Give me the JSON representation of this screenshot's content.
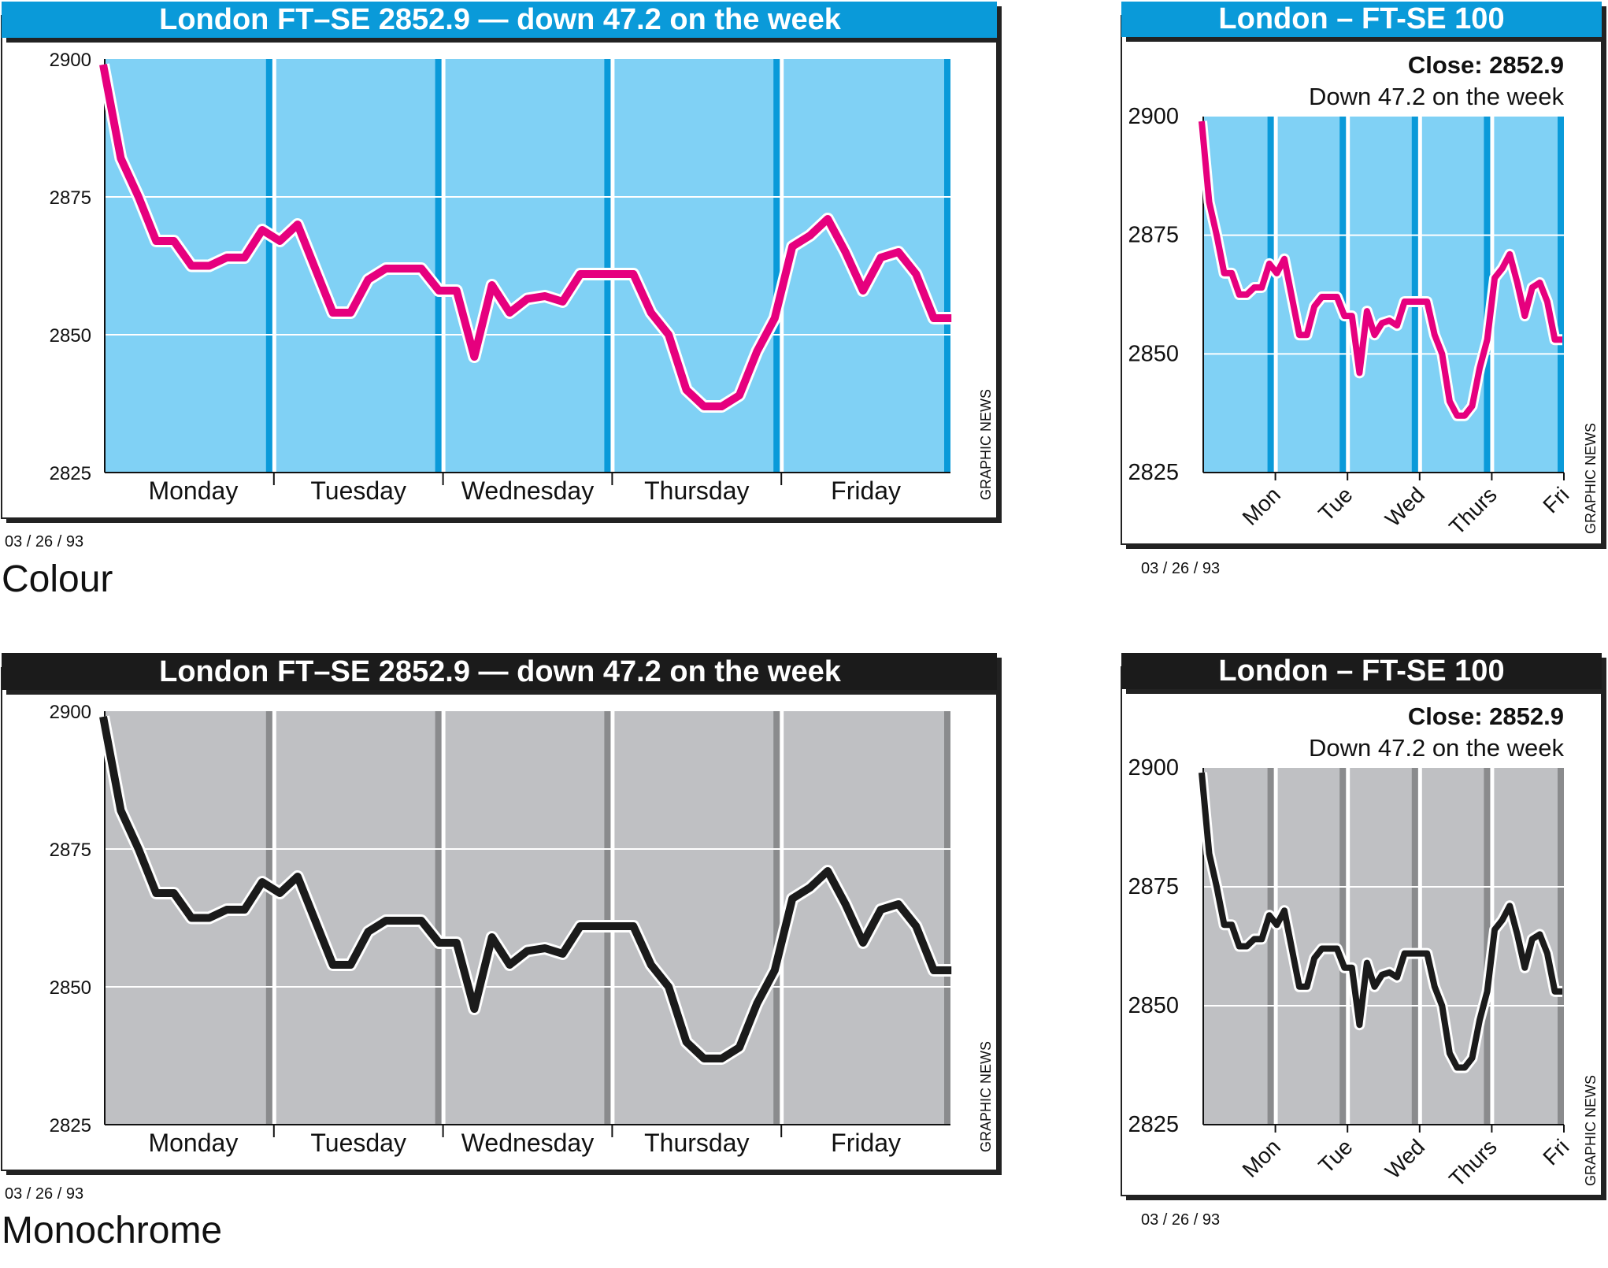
{
  "colors": {
    "colour_header_bg": "#0a9ad9",
    "colour_plot_bg": "#80d1f5",
    "colour_day_band": "#0a9ad9",
    "colour_line": "#e6007e",
    "mono_header_bg": "#1b1b1b",
    "mono_plot_bg": "#bfc0c3",
    "mono_day_band": "#8a8b8d",
    "mono_line": "#1b1b1b",
    "header_text": "#ffffff",
    "gridline": "#ffffff"
  },
  "labels": {
    "colour_section": "Colour",
    "monochrome_section": "Monochrome",
    "date_wide_colour": "03 / 26 / 93",
    "date_narrow_colour": "03 / 26 / 93",
    "date_wide_mono": "03 / 26 / 93",
    "date_narrow_mono": "03 / 26 / 93"
  },
  "chart_data": [
    {
      "id": "wide-colour",
      "type": "line",
      "variant": "colour",
      "title": "London FT–SE 2852.9 — down 47.2 on the week",
      "credit": "GRAPHIC NEWS",
      "xlabel": "",
      "ylabel": "",
      "ylim": [
        2825,
        2900
      ],
      "yticks": [
        "2900",
        "2875",
        "2850",
        "2825"
      ],
      "days": [
        "Monday",
        "Tuesday",
        "Wednesday",
        "Thursday",
        "Friday"
      ],
      "series": [
        {
          "name": "FT-SE",
          "values": [
            2899,
            2882,
            2875,
            2867,
            2867,
            2862.5,
            2862.5,
            2864,
            2864,
            2869,
            2867,
            2870,
            2862,
            2854,
            2854,
            2860,
            2862,
            2862,
            2862,
            2858,
            2858,
            2846,
            2859,
            2854,
            2856.5,
            2857,
            2856,
            2861,
            2861,
            2861,
            2861,
            2854,
            2850,
            2840,
            2837,
            2837,
            2839,
            2847,
            2853,
            2866,
            2868,
            2871,
            2865,
            2858,
            2864,
            2865,
            2861,
            2853,
            2853
          ]
        }
      ]
    },
    {
      "id": "narrow-colour",
      "type": "line",
      "variant": "colour",
      "title": "London – FT-SE 100",
      "close": "Close: 2852.9",
      "change": "Down 47.2 on the week",
      "credit": "GRAPHIC NEWS",
      "xlabel": "",
      "ylabel": "",
      "ylim": [
        2825,
        2900
      ],
      "yticks": [
        "2900",
        "2875",
        "2850",
        "2825"
      ],
      "days": [
        "Mon",
        "Tue",
        "Wed",
        "Thurs",
        "Fri"
      ],
      "series": [
        {
          "name": "FT-SE 100",
          "values": [
            2899,
            2882,
            2875,
            2867,
            2867,
            2862.5,
            2862.5,
            2864,
            2864,
            2869,
            2867,
            2870,
            2862,
            2854,
            2854,
            2860,
            2862,
            2862,
            2862,
            2858,
            2858,
            2846,
            2859,
            2854,
            2856.5,
            2857,
            2856,
            2861,
            2861,
            2861,
            2861,
            2854,
            2850,
            2840,
            2837,
            2837,
            2839,
            2847,
            2853,
            2866,
            2868,
            2871,
            2865,
            2858,
            2864,
            2865,
            2861,
            2853,
            2853
          ]
        }
      ]
    },
    {
      "id": "wide-mono",
      "type": "line",
      "variant": "mono",
      "title": "London FT–SE 2852.9 — down 47.2 on the week",
      "credit": "GRAPHIC NEWS",
      "xlabel": "",
      "ylabel": "",
      "ylim": [
        2825,
        2900
      ],
      "yticks": [
        "2900",
        "2875",
        "2850",
        "2825"
      ],
      "days": [
        "Monday",
        "Tuesday",
        "Wednesday",
        "Thursday",
        "Friday"
      ],
      "series": [
        {
          "name": "FT-SE",
          "values": [
            2899,
            2882,
            2875,
            2867,
            2867,
            2862.5,
            2862.5,
            2864,
            2864,
            2869,
            2867,
            2870,
            2862,
            2854,
            2854,
            2860,
            2862,
            2862,
            2862,
            2858,
            2858,
            2846,
            2859,
            2854,
            2856.5,
            2857,
            2856,
            2861,
            2861,
            2861,
            2861,
            2854,
            2850,
            2840,
            2837,
            2837,
            2839,
            2847,
            2853,
            2866,
            2868,
            2871,
            2865,
            2858,
            2864,
            2865,
            2861,
            2853,
            2853
          ]
        }
      ]
    },
    {
      "id": "narrow-mono",
      "type": "line",
      "variant": "mono",
      "title": "London – FT-SE 100",
      "close": "Close: 2852.9",
      "change": "Down 47.2 on the week",
      "credit": "GRAPHIC NEWS",
      "xlabel": "",
      "ylabel": "",
      "ylim": [
        2825,
        2900
      ],
      "yticks": [
        "2900",
        "2875",
        "2850",
        "2825"
      ],
      "days": [
        "Mon",
        "Tue",
        "Wed",
        "Thurs",
        "Fri"
      ],
      "series": [
        {
          "name": "FT-SE 100",
          "values": [
            2899,
            2882,
            2875,
            2867,
            2867,
            2862.5,
            2862.5,
            2864,
            2864,
            2869,
            2867,
            2870,
            2862,
            2854,
            2854,
            2860,
            2862,
            2862,
            2862,
            2858,
            2858,
            2846,
            2859,
            2854,
            2856.5,
            2857,
            2856,
            2861,
            2861,
            2861,
            2861,
            2854,
            2850,
            2840,
            2837,
            2837,
            2839,
            2847,
            2853,
            2866,
            2868,
            2871,
            2865,
            2858,
            2864,
            2865,
            2861,
            2853,
            2853
          ]
        }
      ]
    }
  ]
}
